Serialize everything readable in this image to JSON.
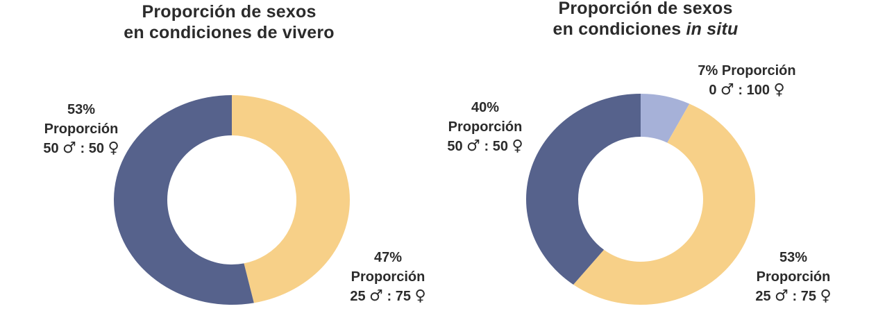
{
  "chart_data": [
    {
      "type": "pie",
      "title_line1": "Proporción de sexos",
      "title_line2": "en condiciones de vivero",
      "slices": [
        {
          "percent_label": "47%",
          "value": 47,
          "name": "Proporción",
          "ratio_left": "25",
          "ratio_right": "75",
          "color": "#F7D088"
        },
        {
          "percent_label": "53%",
          "value": 53,
          "name": "Proporción",
          "ratio_left": "50",
          "ratio_right": "50",
          "color": "#56628C"
        }
      ]
    },
    {
      "type": "pie",
      "title_line1": "Proporción de sexos",
      "title_line2_prefix": "en condiciones ",
      "title_line2_italic": "in situ",
      "slices": [
        {
          "percent_label": "7%",
          "value": 7,
          "name": "Proporción",
          "ratio_left": "0",
          "ratio_right": "100",
          "color": "#A6B1D8"
        },
        {
          "percent_label": "53%",
          "value": 53,
          "name": "Proporción",
          "ratio_left": "25",
          "ratio_right": "75",
          "color": "#F7D088"
        },
        {
          "percent_label": "40%",
          "value": 40,
          "name": "Proporción",
          "ratio_left": "50",
          "ratio_right": "50",
          "color": "#56628C"
        }
      ]
    }
  ],
  "symbols": {
    "male": "♂",
    "female": "♀",
    "separator": ":"
  }
}
